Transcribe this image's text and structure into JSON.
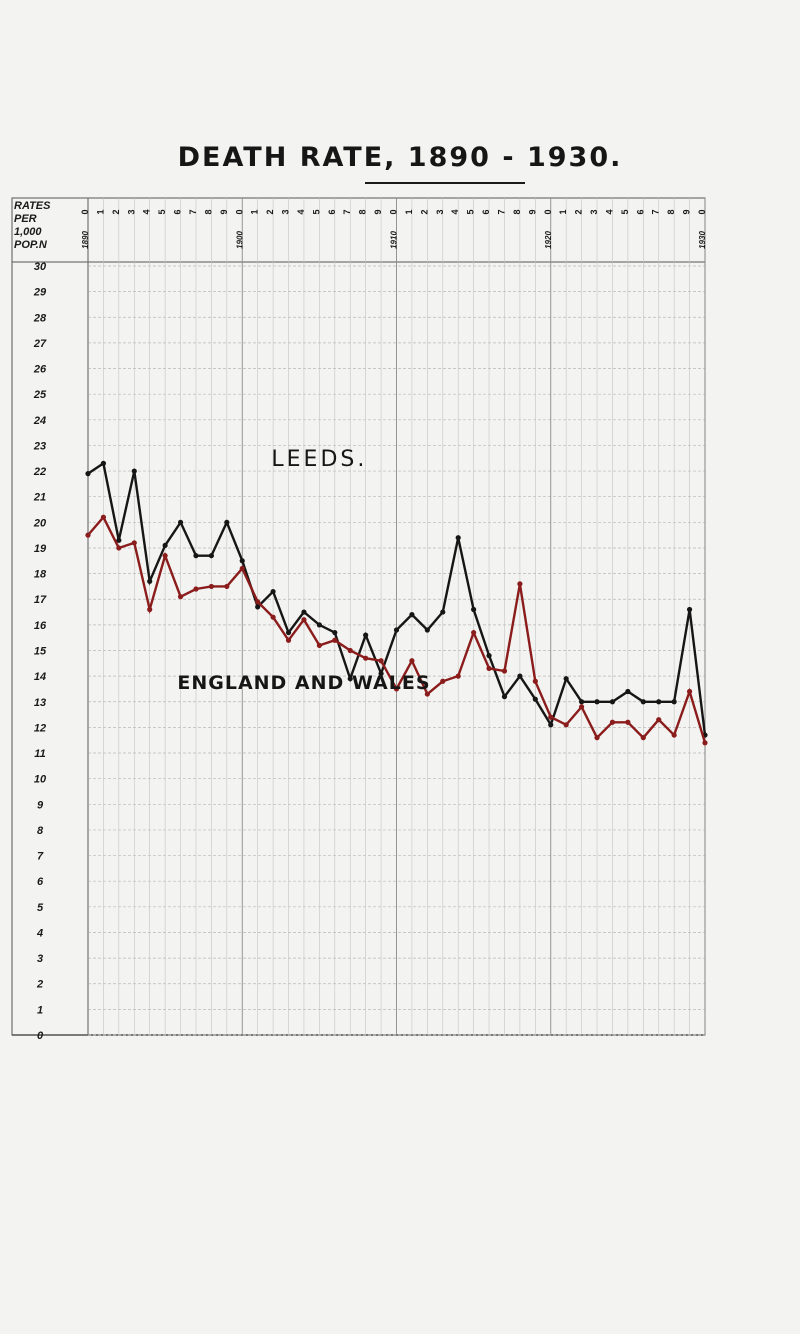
{
  "title": "DEATH RATE, 1890 - 1930.",
  "chart_data": {
    "type": "line",
    "title": "DEATH RATE, 1890 - 1930.",
    "ylabel_lines": [
      "RATES",
      "PER",
      "1,000",
      "POP.N"
    ],
    "xlabel": "",
    "ylim": [
      0,
      30
    ],
    "yticks": [
      0,
      1,
      2,
      3,
      4,
      5,
      6,
      7,
      8,
      9,
      10,
      11,
      12,
      13,
      14,
      15,
      16,
      17,
      18,
      19,
      20,
      21,
      22,
      23,
      24,
      25,
      26,
      27,
      28,
      29,
      30
    ],
    "xlim": [
      1890,
      1930
    ],
    "x_major_labels": [
      "1890",
      "1900",
      "1910",
      "1920",
      "1930"
    ],
    "x_minor_labels": [
      "0",
      "1",
      "2",
      "3",
      "4",
      "5",
      "6",
      "7",
      "8",
      "9",
      "0",
      "1",
      "2",
      "3",
      "4",
      "5",
      "6",
      "7",
      "8",
      "9",
      "0",
      "1",
      "2",
      "3",
      "4",
      "5",
      "6",
      "7",
      "8",
      "9",
      "0",
      "1",
      "2",
      "3",
      "4",
      "5",
      "6",
      "7",
      "8",
      "9",
      "0"
    ],
    "grid": true,
    "x": [
      1890,
      1891,
      1892,
      1893,
      1894,
      1895,
      1896,
      1897,
      1898,
      1899,
      1900,
      1901,
      1902,
      1903,
      1904,
      1905,
      1906,
      1907,
      1908,
      1909,
      1910,
      1911,
      1912,
      1913,
      1914,
      1915,
      1916,
      1917,
      1918,
      1919,
      1920,
      1921,
      1922,
      1923,
      1924,
      1925,
      1926,
      1927,
      1928,
      1929,
      1930
    ],
    "series": [
      {
        "name": "LEEDS.",
        "color": "#161616",
        "values": [
          21.9,
          22.3,
          19.3,
          22.0,
          17.7,
          19.1,
          20.0,
          18.7,
          18.7,
          20.0,
          18.5,
          16.7,
          17.3,
          15.7,
          16.5,
          16.0,
          15.7,
          13.9,
          15.6,
          14.1,
          15.8,
          16.4,
          15.8,
          16.5,
          19.4,
          16.6,
          14.8,
          13.2,
          14.0,
          13.1,
          12.1,
          13.9,
          13.0,
          13.0,
          13.0,
          13.4,
          13.0,
          13.0,
          13.0,
          16.6,
          11.7
        ]
      },
      {
        "name": "ENGLAND AND WALES",
        "color": "#8b1c1c",
        "values": [
          19.5,
          20.2,
          19.0,
          19.2,
          16.6,
          18.7,
          17.1,
          17.4,
          17.5,
          17.5,
          18.2,
          16.9,
          16.3,
          15.4,
          16.2,
          15.2,
          15.4,
          15.0,
          14.7,
          14.6,
          13.5,
          14.6,
          13.3,
          13.8,
          14.0,
          15.7,
          14.3,
          14.2,
          17.6,
          13.8,
          12.4,
          12.1,
          12.8,
          11.6,
          12.2,
          12.2,
          11.6,
          12.3,
          11.7,
          13.4,
          11.4
        ]
      }
    ],
    "annotations": [
      {
        "text": "LEEDS.",
        "x": 1905,
        "y": 22.2
      },
      {
        "text": "ENGLAND AND WALES",
        "x": 1904,
        "y": 13.5
      }
    ]
  }
}
